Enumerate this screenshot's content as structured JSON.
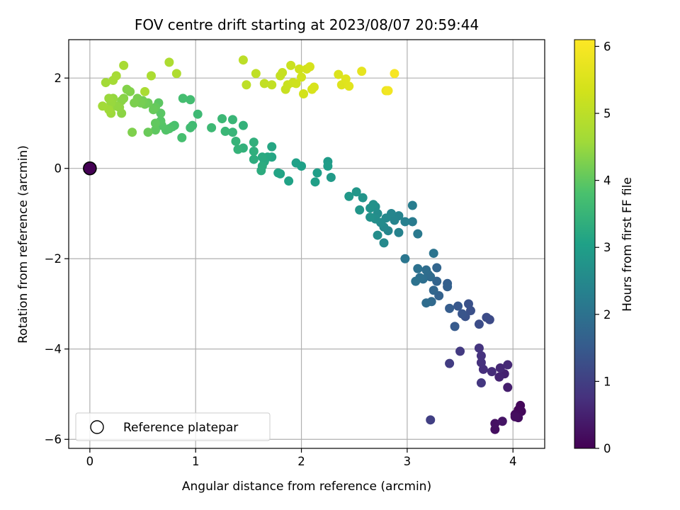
{
  "chart_data": {
    "type": "scatter",
    "title": "FOV centre drift starting at 2023/08/07 20:59:44",
    "xlabel": "Angular distance from reference (arcmin)",
    "ylabel": "Rotation from reference (arcmin)",
    "xlim": [
      -0.2,
      4.3
    ],
    "ylim": [
      -6.2,
      2.85
    ],
    "xticks": [
      "0",
      "1",
      "2",
      "3",
      "4"
    ],
    "yticks": [
      "−6",
      "−4",
      "−2",
      "0",
      "2"
    ],
    "grid": true,
    "legend": {
      "position": "lower-left",
      "label": "Reference platepar"
    },
    "reference_point": {
      "x": 0,
      "y": 0
    },
    "colorbar": {
      "label": "Hours from first FF file",
      "colormap": "viridis",
      "range": [
        0,
        6.1
      ],
      "ticks": [
        "0",
        "1",
        "2",
        "3",
        "4",
        "5",
        "6"
      ]
    },
    "points": [
      [
        4.05,
        -5.35,
        0.05
      ],
      [
        4.07,
        -5.25,
        0.1
      ],
      [
        4.08,
        -5.38,
        0.12
      ],
      [
        4.02,
        -5.45,
        0.15
      ],
      [
        4.05,
        -5.52,
        0.18
      ],
      [
        4.02,
        -5.5,
        0.2
      ],
      [
        3.83,
        -5.78,
        0.22
      ],
      [
        3.83,
        -5.65,
        0.25
      ],
      [
        3.9,
        -5.6,
        0.3
      ],
      [
        3.95,
        -4.85,
        0.45
      ],
      [
        3.92,
        -4.55,
        0.5
      ],
      [
        3.87,
        -4.62,
        0.55
      ],
      [
        3.88,
        -4.42,
        0.6
      ],
      [
        3.95,
        -4.35,
        0.62
      ],
      [
        3.8,
        -4.5,
        0.68
      ],
      [
        3.72,
        -4.45,
        0.72
      ],
      [
        3.7,
        -4.3,
        0.75
      ],
      [
        3.7,
        -4.15,
        0.78
      ],
      [
        3.68,
        -3.98,
        0.82
      ],
      [
        3.7,
        -4.75,
        0.85
      ],
      [
        3.5,
        -4.05,
        0.9
      ],
      [
        3.4,
        -4.32,
        0.95
      ],
      [
        3.22,
        -5.57,
        1.0
      ],
      [
        3.78,
        -3.35,
        1.2
      ],
      [
        3.75,
        -3.3,
        1.22
      ],
      [
        3.68,
        -3.45,
        1.25
      ],
      [
        3.6,
        -3.15,
        1.3
      ],
      [
        3.58,
        -3.0,
        1.32
      ],
      [
        3.55,
        -3.28,
        1.35
      ],
      [
        3.52,
        -3.22,
        1.4
      ],
      [
        3.48,
        -3.05,
        1.45
      ],
      [
        3.45,
        -3.5,
        1.5
      ],
      [
        3.4,
        -3.1,
        1.55
      ],
      [
        3.38,
        -2.55,
        1.6
      ],
      [
        3.38,
        -2.62,
        1.62
      ],
      [
        3.3,
        -2.82,
        1.65
      ],
      [
        3.28,
        -2.5,
        1.7
      ],
      [
        3.28,
        -2.2,
        1.72
      ],
      [
        3.25,
        -2.7,
        1.75
      ],
      [
        3.23,
        -2.95,
        1.8
      ],
      [
        3.22,
        -2.4,
        1.82
      ],
      [
        3.2,
        -2.35,
        1.85
      ],
      [
        3.18,
        -2.98,
        1.88
      ],
      [
        3.18,
        -2.25,
        1.9
      ],
      [
        3.15,
        -2.45,
        1.92
      ],
      [
        3.12,
        -2.42,
        1.95
      ],
      [
        3.1,
        -2.22,
        1.98
      ],
      [
        3.08,
        -2.5,
        2.0
      ],
      [
        3.25,
        -1.88,
        2.05
      ],
      [
        2.98,
        -2.0,
        2.1
      ],
      [
        3.1,
        -1.45,
        2.15
      ],
      [
        3.05,
        -1.18,
        2.2
      ],
      [
        3.05,
        -0.82,
        2.25
      ],
      [
        2.98,
        -1.18,
        2.3
      ],
      [
        2.92,
        -1.42,
        2.35
      ],
      [
        2.92,
        -1.05,
        2.38
      ],
      [
        2.88,
        -1.15,
        2.4
      ],
      [
        2.85,
        -1.0,
        2.42
      ],
      [
        2.82,
        -1.38,
        2.45
      ],
      [
        2.8,
        -1.1,
        2.48
      ],
      [
        2.78,
        -1.3,
        2.5
      ],
      [
        2.78,
        -1.65,
        2.52
      ],
      [
        2.75,
        -1.2,
        2.55
      ],
      [
        2.72,
        -1.0,
        2.58
      ],
      [
        2.72,
        -1.48,
        2.6
      ],
      [
        2.7,
        -1.12,
        2.62
      ],
      [
        2.7,
        -0.85,
        2.65
      ],
      [
        2.68,
        -0.8,
        2.68
      ],
      [
        2.65,
        -1.08,
        2.7
      ],
      [
        2.65,
        -0.88,
        2.72
      ],
      [
        2.58,
        -0.65,
        2.75
      ],
      [
        2.55,
        -0.92,
        2.78
      ],
      [
        2.52,
        -0.52,
        2.8
      ],
      [
        2.45,
        -0.62,
        2.85
      ],
      [
        2.28,
        -0.2,
        2.9
      ],
      [
        2.25,
        0.15,
        2.92
      ],
      [
        2.25,
        0.05,
        2.95
      ],
      [
        2.15,
        -0.1,
        2.98
      ],
      [
        2.13,
        -0.3,
        3.0
      ],
      [
        2.0,
        0.05,
        3.02
      ],
      [
        1.95,
        0.12,
        3.05
      ],
      [
        1.88,
        -0.28,
        3.08
      ],
      [
        1.8,
        -0.12,
        3.1
      ],
      [
        1.78,
        -0.1,
        3.12
      ],
      [
        1.72,
        0.25,
        3.15
      ],
      [
        1.72,
        0.48,
        3.18
      ],
      [
        1.68,
        0.25,
        3.2
      ],
      [
        1.65,
        0.15,
        3.22
      ],
      [
        1.63,
        0.25,
        3.25
      ],
      [
        1.63,
        0.05,
        3.28
      ],
      [
        1.62,
        -0.05,
        3.3
      ],
      [
        1.55,
        0.2,
        3.32
      ],
      [
        1.55,
        0.38,
        3.35
      ],
      [
        1.55,
        0.58,
        3.38
      ],
      [
        1.45,
        0.45,
        3.4
      ],
      [
        1.45,
        0.95,
        3.42
      ],
      [
        1.4,
        0.42,
        3.45
      ],
      [
        1.38,
        0.6,
        3.48
      ],
      [
        1.35,
        0.8,
        3.5
      ],
      [
        1.35,
        1.08,
        3.52
      ],
      [
        1.28,
        0.82,
        3.55
      ],
      [
        1.25,
        1.1,
        3.58
      ],
      [
        1.15,
        0.9,
        3.6
      ],
      [
        1.02,
        1.2,
        3.62
      ],
      [
        0.97,
        0.95,
        3.65
      ],
      [
        0.95,
        0.9,
        3.68
      ],
      [
        0.95,
        1.52,
        3.7
      ],
      [
        0.88,
        1.55,
        3.72
      ],
      [
        0.87,
        0.68,
        3.75
      ],
      [
        0.8,
        0.95,
        3.8
      ],
      [
        0.78,
        0.92,
        3.82
      ],
      [
        0.75,
        0.88,
        3.85
      ],
      [
        0.72,
        0.85,
        3.88
      ],
      [
        0.68,
        0.95,
        3.9
      ],
      [
        0.67,
        1.05,
        3.92
      ],
      [
        0.67,
        1.22,
        3.95
      ],
      [
        0.65,
        1.45,
        3.98
      ],
      [
        0.62,
        0.85,
        4.0
      ],
      [
        0.62,
        1.0,
        4.02
      ],
      [
        0.62,
        1.35,
        4.05
      ],
      [
        0.6,
        1.3,
        4.08
      ],
      [
        0.55,
        0.8,
        4.1
      ],
      [
        0.55,
        1.45,
        4.12
      ],
      [
        0.52,
        1.42,
        4.15
      ],
      [
        0.5,
        1.5,
        4.18
      ],
      [
        0.48,
        1.45,
        4.2
      ],
      [
        0.45,
        1.55,
        4.22
      ],
      [
        0.42,
        1.45,
        4.25
      ],
      [
        0.4,
        0.8,
        4.28
      ],
      [
        0.38,
        1.7,
        4.3
      ],
      [
        0.35,
        1.75,
        4.32
      ],
      [
        0.32,
        1.55,
        4.35
      ],
      [
        0.3,
        1.5,
        4.38
      ],
      [
        0.3,
        1.22,
        4.4
      ],
      [
        0.28,
        1.35,
        4.42
      ],
      [
        0.25,
        1.38,
        4.45
      ],
      [
        0.22,
        1.55,
        4.48
      ],
      [
        0.2,
        1.45,
        4.5
      ],
      [
        0.18,
        1.55,
        4.52
      ],
      [
        0.2,
        1.22,
        4.55
      ],
      [
        0.18,
        1.3,
        4.58
      ],
      [
        0.12,
        1.38,
        4.6
      ],
      [
        0.15,
        1.9,
        4.62
      ],
      [
        0.22,
        1.95,
        4.65
      ],
      [
        0.25,
        2.05,
        4.68
      ],
      [
        0.32,
        2.28,
        4.7
      ],
      [
        0.52,
        1.7,
        4.72
      ],
      [
        0.58,
        2.05,
        4.75
      ],
      [
        0.75,
        2.35,
        4.78
      ],
      [
        0.82,
        2.1,
        4.8
      ],
      [
        1.45,
        2.4,
        5.0
      ],
      [
        1.48,
        1.85,
        5.02
      ],
      [
        1.57,
        2.1,
        5.05
      ],
      [
        1.65,
        1.88,
        5.08
      ],
      [
        1.72,
        1.85,
        5.1
      ],
      [
        1.8,
        2.05,
        5.12
      ],
      [
        1.82,
        2.12,
        5.15
      ],
      [
        1.85,
        1.75,
        5.18
      ],
      [
        1.87,
        1.85,
        5.2
      ],
      [
        1.9,
        2.28,
        5.22
      ],
      [
        1.92,
        1.9,
        5.25
      ],
      [
        1.95,
        1.88,
        5.28
      ],
      [
        1.98,
        2.2,
        5.3
      ],
      [
        2.0,
        2.02,
        5.32
      ],
      [
        2.02,
        1.65,
        5.35
      ],
      [
        2.05,
        2.2,
        5.38
      ],
      [
        2.08,
        2.25,
        5.4
      ],
      [
        2.1,
        1.75,
        5.42
      ],
      [
        2.12,
        1.8,
        5.45
      ],
      [
        2.35,
        2.08,
        5.5
      ],
      [
        2.38,
        1.85,
        5.55
      ],
      [
        2.42,
        1.98,
        5.58
      ],
      [
        2.45,
        1.82,
        5.6
      ],
      [
        2.57,
        2.15,
        5.7
      ],
      [
        2.8,
        1.72,
        5.8
      ],
      [
        2.82,
        1.72,
        5.9
      ],
      [
        2.88,
        2.1,
        6.0
      ]
    ]
  }
}
